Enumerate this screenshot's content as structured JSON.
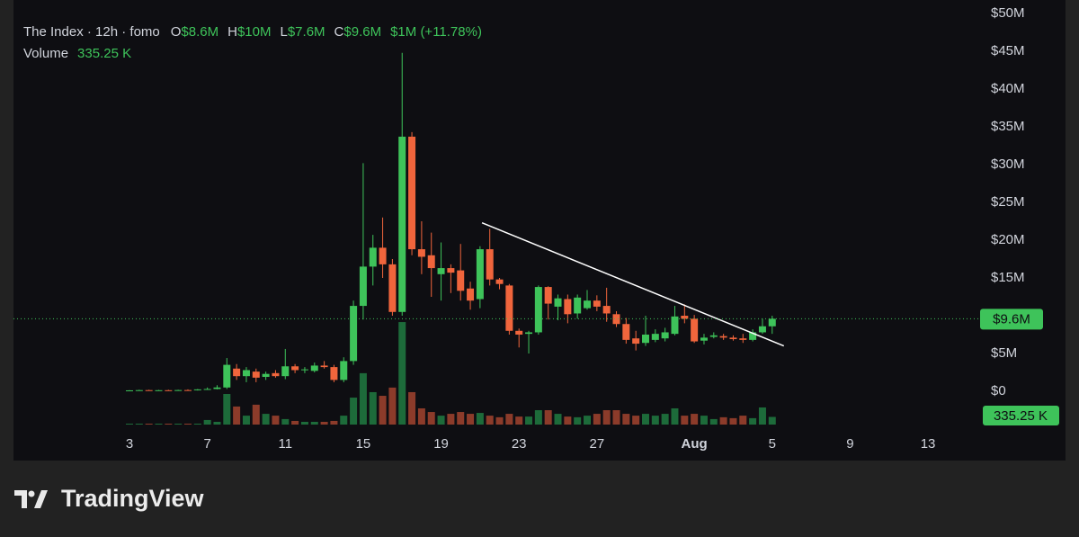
{
  "chart_data": {
    "type": "candlestick",
    "legend": {
      "symbol": "The Index · 12h · fomo",
      "ohlc": [
        {
          "key": "O",
          "value": "$8.6M"
        },
        {
          "key": "H",
          "value": "$10M"
        },
        {
          "key": "L",
          "value": "$7.6M"
        },
        {
          "key": "C",
          "value": "$9.6M"
        }
      ],
      "change": "$1M (+11.78%)",
      "volume_name": "Volume",
      "volume_value": "335.25 K"
    },
    "categories": [
      "3",
      null,
      null,
      null,
      null,
      null,
      null,
      null,
      "7",
      null,
      null,
      null,
      null,
      null,
      null,
      null,
      "11",
      null,
      null,
      null,
      null,
      null,
      null,
      null,
      "15",
      null,
      null,
      null,
      null,
      null,
      null,
      null,
      "19",
      null,
      null,
      null,
      null,
      null,
      null,
      null,
      "23",
      null,
      null,
      null,
      null,
      null,
      null,
      null,
      "27",
      null,
      null,
      null,
      null,
      null,
      null,
      null,
      null,
      null,
      "Aug",
      null,
      null,
      null,
      null,
      null,
      null,
      null,
      "5",
      null,
      null,
      null,
      null,
      null,
      null,
      null,
      "9",
      null,
      null,
      null,
      null,
      null,
      null,
      null,
      "13"
    ],
    "open": [
      0.1,
      0.12,
      0.15,
      0.12,
      0.14,
      0.13,
      0.16,
      0.15,
      0.25,
      0.3,
      0.5,
      3.0,
      2.0,
      2.6,
      1.9,
      2.4,
      2.0,
      3.3,
      2.8,
      2.7,
      3.4,
      3.2,
      1.5,
      4.0,
      11.3,
      16.5,
      19.0,
      16.8,
      10.5,
      33.7,
      18.8,
      18.0,
      15.5,
      16.3,
      16.0,
      13.6,
      12.2,
      18.8,
      14.8,
      14.0,
      8.0,
      7.6,
      7.8,
      13.8,
      11.2,
      12.2,
      10.3,
      11.0,
      12.0,
      11.3,
      10.2,
      8.9,
      7.0,
      6.4,
      6.8,
      7.0,
      7.6,
      10.0,
      9.6,
      6.7,
      7.2,
      7.3,
      7.1,
      7.0,
      6.8,
      7.8,
      8.6,
      null,
      null,
      null,
      null,
      null,
      null,
      null,
      null,
      null,
      null,
      null,
      null,
      null,
      null,
      null,
      null
    ],
    "high": [
      0.15,
      0.2,
      0.2,
      0.18,
      0.2,
      0.2,
      0.25,
      0.3,
      0.5,
      0.8,
      4.4,
      3.6,
      3.2,
      3.0,
      2.6,
      2.8,
      5.6,
      3.6,
      3.2,
      3.8,
      4.0,
      3.5,
      4.5,
      12.0,
      30.2,
      20.7,
      23.0,
      17.5,
      44.8,
      34.3,
      22.5,
      21.0,
      19.7,
      16.8,
      19.5,
      14.5,
      19.2,
      21.5,
      15.0,
      14.2,
      8.3,
      8.0,
      14.0,
      13.9,
      12.8,
      12.8,
      12.8,
      13.4,
      12.7,
      13.7,
      10.6,
      9.7,
      8.0,
      10.0,
      8.2,
      8.4,
      11.3,
      11.5,
      10.1,
      7.6,
      7.8,
      7.6,
      7.4,
      7.6,
      8.2,
      9.6,
      10,
      null,
      null,
      null,
      null,
      null,
      null,
      null,
      null,
      null,
      null,
      null,
      null,
      null,
      null,
      null,
      null
    ],
    "low": [
      0.05,
      0.1,
      0.1,
      0.1,
      0.1,
      0.1,
      0.12,
      0.1,
      0.2,
      0.25,
      0.3,
      1.5,
      1.2,
      1.2,
      1.5,
      1.8,
      1.6,
      2.4,
      2.4,
      2.5,
      3.0,
      1.2,
      1.2,
      3.5,
      9.5,
      14.0,
      15.0,
      10.0,
      10.0,
      18.0,
      15.5,
      12.5,
      12.0,
      13.0,
      12.0,
      10.8,
      11.0,
      14.0,
      13.5,
      7.5,
      5.8,
      5.0,
      7.5,
      9.5,
      9.4,
      9.0,
      9.6,
      10.8,
      10.6,
      9.2,
      8.5,
      6.3,
      5.4,
      6.0,
      6.5,
      6.6,
      7.4,
      9.0,
      6.4,
      6.2,
      7.0,
      6.8,
      6.7,
      6.4,
      6.6,
      7.6,
      7.6,
      null,
      null,
      null,
      null,
      null,
      null,
      null,
      null,
      null,
      null,
      null,
      null,
      null,
      null,
      null,
      null
    ],
    "close": [
      0.12,
      0.15,
      0.12,
      0.14,
      0.13,
      0.16,
      0.15,
      0.25,
      0.3,
      0.5,
      3.5,
      2.0,
      2.8,
      1.8,
      2.3,
      2.0,
      3.3,
      2.8,
      2.9,
      3.4,
      3.2,
      1.5,
      4.0,
      11.3,
      16.5,
      19.0,
      16.8,
      10.5,
      33.7,
      18.8,
      17.8,
      16.3,
      16.3,
      15.7,
      13.3,
      12.0,
      18.8,
      14.8,
      14.2,
      8.0,
      7.5,
      7.8,
      13.8,
      11.6,
      12.3,
      10.2,
      12.4,
      12.0,
      11.2,
      10.3,
      8.9,
      6.8,
      6.3,
      7.5,
      7.6,
      7.8,
      9.9,
      9.6,
      6.6,
      7.1,
      7.4,
      7.1,
      6.9,
      6.8,
      7.8,
      8.6,
      9.6,
      null,
      null,
      null,
      null,
      null,
      null,
      null,
      null,
      null,
      null,
      null,
      null,
      null,
      null,
      null,
      null
    ],
    "volume": [
      40,
      40,
      40,
      40,
      40,
      40,
      40,
      40,
      200,
      120,
      1340,
      790,
      390,
      870,
      470,
      390,
      240,
      160,
      120,
      120,
      120,
      160,
      390,
      1180,
      2250,
      1420,
      1260,
      1620,
      4490,
      1420,
      710,
      550,
      390,
      470,
      550,
      470,
      510,
      390,
      320,
      470,
      350,
      350,
      630,
      630,
      470,
      350,
      320,
      390,
      470,
      630,
      630,
      470,
      390,
      470,
      390,
      470,
      710,
      390,
      470,
      390,
      240,
      320,
      280,
      390,
      280,
      750,
      335.25,
      null,
      null,
      null,
      null,
      null,
      null,
      null,
      null,
      null,
      null,
      null,
      null,
      null,
      null,
      null,
      null
    ],
    "ylim": [
      -5.36,
      51.79
    ],
    "yticks": [
      {
        "value": 0,
        "label": "$0"
      },
      {
        "value": 5,
        "label": "$5M"
      },
      {
        "value": 15,
        "label": "$15M"
      },
      {
        "value": 20,
        "label": "$20M"
      },
      {
        "value": 25,
        "label": "$25M"
      },
      {
        "value": 30,
        "label": "$30M"
      },
      {
        "value": 35,
        "label": "$35M"
      },
      {
        "value": 40,
        "label": "$40M"
      },
      {
        "value": 45,
        "label": "$45M"
      },
      {
        "value": 50,
        "label": "$50M"
      }
    ],
    "volume_ylim": [
      0,
      18600
    ],
    "price_badge": "$9.6M",
    "volume_badge": "335.25 K",
    "trendline": {
      "x": [
        36.2,
        67.2
      ],
      "y": [
        22.3,
        6.0
      ],
      "color": "#ffffff"
    },
    "up_color": "#3ec35a",
    "down_color": "#f0653c",
    "volume_up_color": "#1d6b3a",
    "volume_down_color": "#8c3b2a"
  },
  "brand": "TradingView"
}
